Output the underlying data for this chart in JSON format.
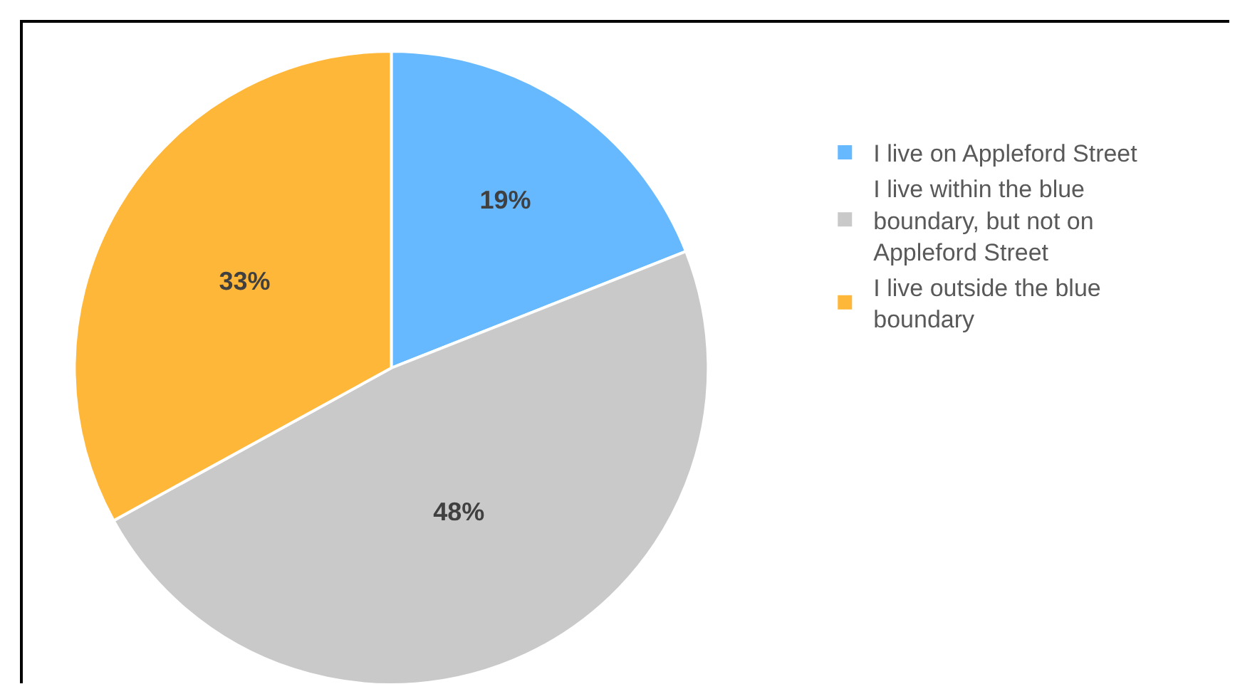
{
  "chart_data": {
    "type": "pie",
    "categories": [
      "I live on Appleford Street",
      "I live within the blue boundary, but not on Appleford Street",
      "I live outside the blue boundary"
    ],
    "values": [
      19,
      48,
      33
    ],
    "colors": [
      "#66b9ff",
      "#c9c9c9",
      "#ffb739"
    ],
    "value_labels": [
      "19%",
      "48%",
      "33%"
    ],
    "legend": "right"
  }
}
